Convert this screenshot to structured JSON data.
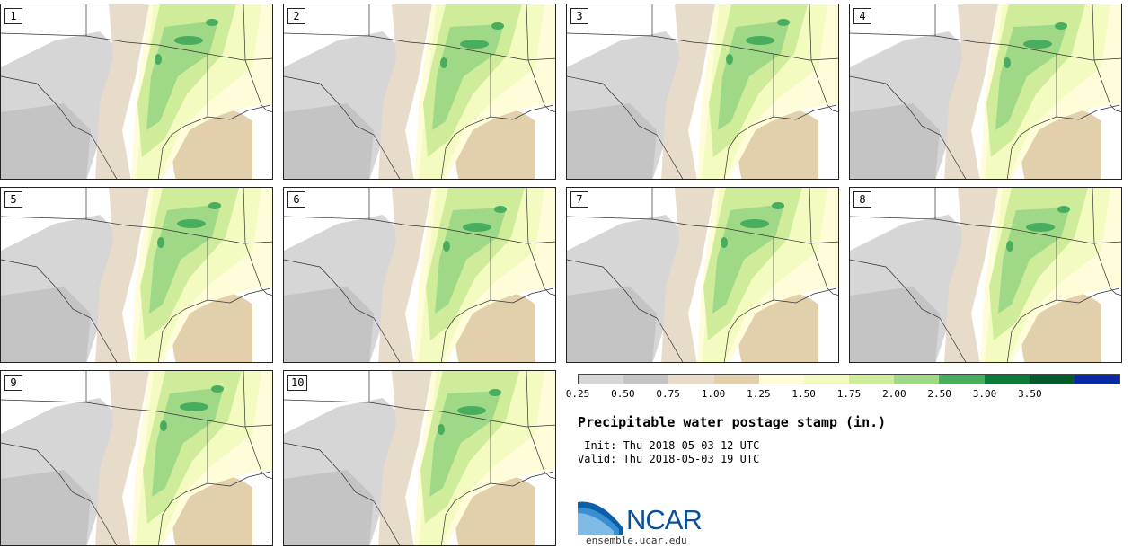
{
  "panels": [
    "1",
    "2",
    "3",
    "4",
    "5",
    "6",
    "7",
    "8",
    "9",
    "10"
  ],
  "colorbar": {
    "colors": [
      "#d6d6d6",
      "#c4c4c4",
      "#e6dcc9",
      "#e2cfab",
      "#fefcd9",
      "#f3fbc0",
      "#cfec9a",
      "#9fd987",
      "#48ad5f",
      "#0c7a3a",
      "#045a2c",
      "#0a28a0"
    ],
    "tick_labels": [
      "0.25",
      "0.50",
      "0.75",
      "1.00",
      "1.25",
      "1.50",
      "1.75",
      "2.00",
      "2.50",
      "3.00",
      "3.50"
    ]
  },
  "title": "Precipitable water postage stamp (in.)",
  "init": " Init: Thu 2018-05-03 12 UTC",
  "valid": "Valid: Thu 2018-05-03 19 UTC",
  "logo_text": "NCAR",
  "url": "ensemble.ucar.edu"
}
